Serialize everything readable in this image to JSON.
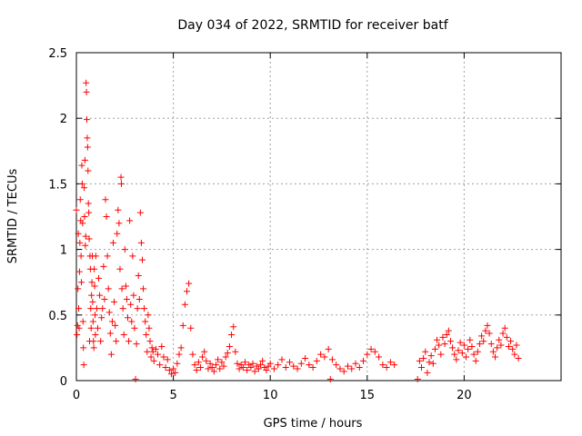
{
  "chart_data": {
    "type": "scatter",
    "title": "Day 034 of 2022, SRMTID for receiver batf",
    "xlabel": "GPS time / hours",
    "ylabel": "SRMTID / TECUs",
    "xlim": [
      0,
      25
    ],
    "ylim": [
      0,
      2.5
    ],
    "xticks": [
      0,
      5,
      10,
      15,
      20
    ],
    "xtick_labels": [
      "0",
      "5",
      "10",
      "15",
      "20"
    ],
    "yticks": [
      0,
      0.5,
      1,
      1.5,
      2,
      2.5
    ],
    "ytick_labels": [
      "0",
      "0.5",
      "1",
      "1.5",
      "2",
      "2.5"
    ],
    "grid": true,
    "marker": "+",
    "color": "#ff0000",
    "series": [
      {
        "name": "SRMTID",
        "points": [
          [
            0.0,
            1.3
          ],
          [
            0.03,
            0.35
          ],
          [
            0.06,
            0.42
          ],
          [
            0.08,
            0.7
          ],
          [
            0.1,
            1.12
          ],
          [
            0.12,
            0.55
          ],
          [
            0.14,
            0.4
          ],
          [
            0.16,
            0.83
          ],
          [
            0.18,
            1.05
          ],
          [
            0.2,
            1.38
          ],
          [
            0.22,
            1.22
          ],
          [
            0.24,
            0.95
          ],
          [
            0.26,
            0.75
          ],
          [
            0.28,
            1.64
          ],
          [
            0.3,
            1.5
          ],
          [
            0.32,
            1.2
          ],
          [
            0.34,
            0.45
          ],
          [
            0.36,
            0.25
          ],
          [
            0.38,
            0.12
          ],
          [
            0.4,
            1.47
          ],
          [
            0.42,
            1.25
          ],
          [
            0.44,
            1.68
          ],
          [
            0.46,
            1.03
          ],
          [
            0.48,
            1.1
          ],
          [
            0.5,
            2.27
          ],
          [
            0.52,
            2.2
          ],
          [
            0.54,
            1.99
          ],
          [
            0.56,
            1.85
          ],
          [
            0.58,
            1.78
          ],
          [
            0.6,
            1.6
          ],
          [
            0.62,
            1.35
          ],
          [
            0.64,
            1.28
          ],
          [
            0.66,
            1.08
          ],
          [
            0.68,
            0.3
          ],
          [
            0.7,
            0.95
          ],
          [
            0.72,
            0.85
          ],
          [
            0.74,
            0.55
          ],
          [
            0.76,
            0.4
          ],
          [
            0.78,
            0.65
          ],
          [
            0.8,
            0.75
          ],
          [
            0.82,
            0.95
          ],
          [
            0.84,
            0.6
          ],
          [
            0.86,
            0.45
          ],
          [
            0.88,
            0.3
          ],
          [
            0.9,
            0.25
          ],
          [
            0.92,
            0.85
          ],
          [
            0.94,
            0.72
          ],
          [
            0.96,
            0.5
          ],
          [
            0.98,
            0.35
          ],
          [
            1.0,
            0.95
          ],
          [
            1.05,
            0.55
          ],
          [
            1.1,
            0.4
          ],
          [
            1.15,
            0.78
          ],
          [
            1.2,
            0.65
          ],
          [
            1.25,
            0.3
          ],
          [
            1.3,
            0.48
          ],
          [
            1.35,
            0.55
          ],
          [
            1.4,
            0.87
          ],
          [
            1.45,
            0.62
          ],
          [
            1.5,
            1.38
          ],
          [
            1.55,
            1.25
          ],
          [
            1.6,
            0.95
          ],
          [
            1.65,
            0.7
          ],
          [
            1.7,
            0.52
          ],
          [
            1.75,
            0.36
          ],
          [
            1.8,
            0.2
          ],
          [
            1.85,
            0.45
          ],
          [
            1.9,
            1.05
          ],
          [
            1.95,
            0.6
          ],
          [
            2.0,
            0.42
          ],
          [
            2.05,
            0.3
          ],
          [
            2.1,
            1.12
          ],
          [
            2.15,
            1.3
          ],
          [
            2.2,
            1.2
          ],
          [
            2.25,
            0.85
          ],
          [
            2.3,
            1.55
          ],
          [
            2.32,
            1.5
          ],
          [
            2.35,
            0.7
          ],
          [
            2.4,
            0.55
          ],
          [
            2.45,
            0.35
          ],
          [
            2.5,
            1.0
          ],
          [
            2.55,
            0.72
          ],
          [
            2.6,
            0.62
          ],
          [
            2.65,
            0.48
          ],
          [
            2.7,
            0.3
          ],
          [
            2.75,
            1.22
          ],
          [
            2.8,
            0.58
          ],
          [
            2.85,
            0.45
          ],
          [
            2.9,
            0.95
          ],
          [
            2.95,
            0.65
          ],
          [
            3.0,
            0.4
          ],
          [
            3.05,
            0.01
          ],
          [
            3.1,
            0.28
          ],
          [
            3.15,
            0.55
          ],
          [
            3.2,
            0.8
          ],
          [
            3.25,
            0.62
          ],
          [
            3.3,
            1.28
          ],
          [
            3.35,
            1.05
          ],
          [
            3.4,
            0.92
          ],
          [
            3.45,
            0.7
          ],
          [
            3.5,
            0.55
          ],
          [
            3.55,
            0.45
          ],
          [
            3.6,
            0.35
          ],
          [
            3.65,
            0.22
          ],
          [
            3.7,
            0.5
          ],
          [
            3.75,
            0.4
          ],
          [
            3.8,
            0.3
          ],
          [
            3.85,
            0.18
          ],
          [
            3.9,
            0.25
          ],
          [
            3.95,
            0.22
          ],
          [
            4.0,
            0.15
          ],
          [
            4.1,
            0.24
          ],
          [
            4.2,
            0.2
          ],
          [
            4.3,
            0.12
          ],
          [
            4.4,
            0.26
          ],
          [
            4.5,
            0.18
          ],
          [
            4.6,
            0.1
          ],
          [
            4.7,
            0.16
          ],
          [
            4.8,
            0.08
          ],
          [
            4.9,
            0.05
          ],
          [
            5.0,
            0.09
          ],
          [
            5.1,
            0.06
          ],
          [
            5.2,
            0.13
          ],
          [
            5.3,
            0.2
          ],
          [
            5.4,
            0.25
          ],
          [
            5.5,
            0.42
          ],
          [
            5.6,
            0.58
          ],
          [
            5.7,
            0.68
          ],
          [
            5.8,
            0.74
          ],
          [
            5.9,
            0.4
          ],
          [
            6.0,
            0.2
          ],
          [
            6.1,
            0.12
          ],
          [
            6.2,
            0.08
          ],
          [
            6.3,
            0.14
          ],
          [
            6.4,
            0.1
          ],
          [
            6.5,
            0.18
          ],
          [
            6.6,
            0.22
          ],
          [
            6.7,
            0.15
          ],
          [
            6.8,
            0.09
          ],
          [
            6.9,
            0.13
          ],
          [
            7.0,
            0.1
          ],
          [
            7.1,
            0.07
          ],
          [
            7.2,
            0.12
          ],
          [
            7.3,
            0.16
          ],
          [
            7.4,
            0.09
          ],
          [
            7.5,
            0.14
          ],
          [
            7.6,
            0.11
          ],
          [
            7.7,
            0.18
          ],
          [
            7.8,
            0.21
          ],
          [
            7.9,
            0.26
          ],
          [
            8.0,
            0.35
          ],
          [
            8.1,
            0.41
          ],
          [
            8.2,
            0.22
          ],
          [
            8.3,
            0.13
          ],
          [
            8.4,
            0.09
          ],
          [
            8.5,
            0.12
          ],
          [
            8.6,
            0.1
          ],
          [
            8.7,
            0.14
          ],
          [
            8.8,
            0.08
          ],
          [
            8.9,
            0.12
          ],
          [
            9.0,
            0.1
          ],
          [
            9.1,
            0.13
          ],
          [
            9.2,
            0.07
          ],
          [
            9.3,
            0.11
          ],
          [
            9.4,
            0.09
          ],
          [
            9.5,
            0.12
          ],
          [
            9.6,
            0.15
          ],
          [
            9.7,
            0.1
          ],
          [
            9.8,
            0.08
          ],
          [
            9.9,
            0.11
          ],
          [
            10.0,
            0.13
          ],
          [
            10.2,
            0.09
          ],
          [
            10.4,
            0.12
          ],
          [
            10.6,
            0.16
          ],
          [
            10.8,
            0.1
          ],
          [
            11.0,
            0.14
          ],
          [
            11.2,
            0.11
          ],
          [
            11.4,
            0.09
          ],
          [
            11.6,
            0.13
          ],
          [
            11.8,
            0.17
          ],
          [
            12.0,
            0.12
          ],
          [
            12.2,
            0.1
          ],
          [
            12.4,
            0.15
          ],
          [
            12.6,
            0.2
          ],
          [
            12.8,
            0.18
          ],
          [
            13.0,
            0.24
          ],
          [
            13.1,
            0.01
          ],
          [
            13.2,
            0.16
          ],
          [
            13.4,
            0.12
          ],
          [
            13.6,
            0.09
          ],
          [
            13.8,
            0.07
          ],
          [
            14.0,
            0.11
          ],
          [
            14.2,
            0.09
          ],
          [
            14.4,
            0.13
          ],
          [
            14.6,
            0.1
          ],
          [
            14.8,
            0.15
          ],
          [
            15.0,
            0.2
          ],
          [
            15.2,
            0.24
          ],
          [
            15.4,
            0.22
          ],
          [
            15.6,
            0.18
          ],
          [
            15.8,
            0.12
          ],
          [
            16.0,
            0.1
          ],
          [
            16.2,
            0.14
          ],
          [
            16.4,
            0.12
          ],
          [
            17.6,
            0.01
          ],
          [
            17.7,
            0.15
          ],
          [
            17.8,
            0.1
          ],
          [
            17.9,
            0.17
          ],
          [
            18.0,
            0.22
          ],
          [
            18.1,
            0.06
          ],
          [
            18.2,
            0.14
          ],
          [
            18.3,
            0.19
          ],
          [
            18.4,
            0.13
          ],
          [
            18.5,
            0.24
          ],
          [
            18.6,
            0.31
          ],
          [
            18.7,
            0.27
          ],
          [
            18.8,
            0.2
          ],
          [
            18.9,
            0.33
          ],
          [
            19.0,
            0.28
          ],
          [
            19.1,
            0.35
          ],
          [
            19.2,
            0.38
          ],
          [
            19.3,
            0.3
          ],
          [
            19.4,
            0.25
          ],
          [
            19.5,
            0.2
          ],
          [
            19.6,
            0.16
          ],
          [
            19.7,
            0.23
          ],
          [
            19.8,
            0.29
          ],
          [
            19.9,
            0.21
          ],
          [
            20.0,
            0.27
          ],
          [
            20.1,
            0.18
          ],
          [
            20.2,
            0.24
          ],
          [
            20.3,
            0.31
          ],
          [
            20.4,
            0.26
          ],
          [
            20.5,
            0.2
          ],
          [
            20.6,
            0.15
          ],
          [
            20.7,
            0.22
          ],
          [
            20.8,
            0.28
          ],
          [
            20.9,
            0.34
          ],
          [
            21.0,
            0.3
          ],
          [
            21.1,
            0.38
          ],
          [
            21.2,
            0.42
          ],
          [
            21.3,
            0.36
          ],
          [
            21.4,
            0.28
          ],
          [
            21.5,
            0.22
          ],
          [
            21.6,
            0.18
          ],
          [
            21.7,
            0.25
          ],
          [
            21.8,
            0.31
          ],
          [
            21.9,
            0.27
          ],
          [
            22.0,
            0.36
          ],
          [
            22.1,
            0.4
          ],
          [
            22.2,
            0.33
          ],
          [
            22.3,
            0.26
          ],
          [
            22.4,
            0.3
          ],
          [
            22.5,
            0.24
          ],
          [
            22.6,
            0.2
          ],
          [
            22.7,
            0.27
          ],
          [
            22.8,
            0.17
          ]
        ]
      }
    ]
  }
}
